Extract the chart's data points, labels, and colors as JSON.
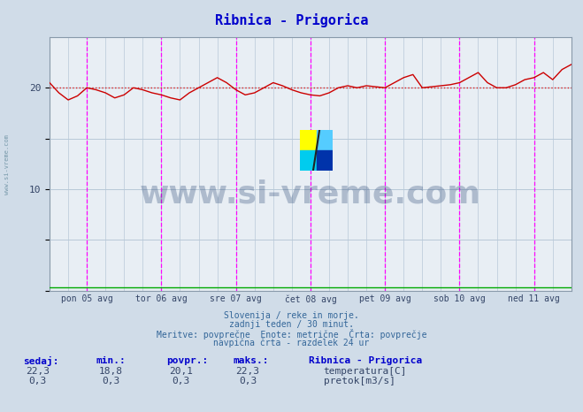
{
  "title": "Ribnica - Prigorica",
  "title_color": "#0000cc",
  "bg_color": "#d0dce8",
  "plot_bg_color": "#e8eef4",
  "grid_color": "#b8c8d8",
  "ylim": [
    0,
    25
  ],
  "yticks": [
    0,
    5,
    10,
    15,
    20
  ],
  "xlim": [
    0,
    336
  ],
  "day_labels": [
    "pon 05 avg",
    "tor 06 avg",
    "sre 07 avg",
    "čet 08 avg",
    "pet 09 avg",
    "sob 10 avg",
    "ned 11 avg"
  ],
  "day_positions": [
    24,
    72,
    120,
    168,
    216,
    264,
    312
  ],
  "vline_positions": [
    24,
    72,
    120,
    168,
    216,
    264,
    312
  ],
  "hline_y": 20,
  "hline_color": "#dd2222",
  "temp_color": "#cc0000",
  "pretok_color": "#00aa00",
  "watermark_text": "www.si-vreme.com",
  "watermark_color": "#1a3a6b",
  "watermark_alpha": 0.28,
  "sidebar_text": "www.si-vreme.com",
  "sidebar_color": "#7799aa",
  "footer_lines": [
    "Slovenija / reke in morje.",
    "zadnji teden / 30 minut.",
    "Meritve: povprečne  Enote: metrične  Črta: povprečje",
    "navpična črta - razdelek 24 ur"
  ],
  "footer_color": "#336699",
  "stats_color": "#0000cc",
  "temp_data_x": [
    0,
    6,
    12,
    18,
    24,
    30,
    36,
    42,
    48,
    54,
    60,
    66,
    72,
    78,
    84,
    90,
    96,
    102,
    108,
    114,
    120,
    126,
    132,
    138,
    144,
    150,
    156,
    162,
    168,
    174,
    180,
    186,
    192,
    198,
    204,
    210,
    216,
    222,
    228,
    234,
    240,
    246,
    252,
    258,
    264,
    270,
    276,
    282,
    288,
    294,
    300,
    306,
    312,
    318,
    324,
    330,
    336
  ],
  "temp_data_y": [
    20.5,
    19.5,
    18.8,
    19.2,
    20.0,
    19.8,
    19.5,
    19.0,
    19.3,
    20.0,
    19.8,
    19.5,
    19.3,
    19.0,
    18.8,
    19.5,
    20.0,
    20.5,
    21.0,
    20.5,
    19.8,
    19.3,
    19.5,
    20.0,
    20.5,
    20.2,
    19.8,
    19.5,
    19.3,
    19.2,
    19.5,
    20.0,
    20.2,
    20.0,
    20.2,
    20.1,
    20.0,
    20.5,
    21.0,
    21.3,
    20.0,
    20.1,
    20.2,
    20.3,
    20.5,
    21.0,
    21.5,
    20.5,
    20.0,
    20.0,
    20.3,
    20.8,
    21.0,
    21.5,
    20.8,
    21.8,
    22.3
  ],
  "pretok_data_x": [
    0,
    6,
    12,
    18,
    24,
    30,
    36,
    42,
    48,
    54,
    60,
    66,
    72,
    78,
    84,
    90,
    96,
    102,
    108,
    114,
    120,
    126,
    132,
    138,
    144,
    150,
    156,
    162,
    168,
    174,
    180,
    186,
    192,
    198,
    204,
    210,
    216,
    222,
    228,
    234,
    240,
    246,
    252,
    258,
    264,
    270,
    276,
    282,
    288,
    294,
    300,
    306,
    312,
    318,
    324,
    330,
    336
  ],
  "pretok_data_y": [
    0.3,
    0.3,
    0.3,
    0.3,
    0.3,
    0.3,
    0.3,
    0.3,
    0.3,
    0.3,
    0.3,
    0.3,
    0.3,
    0.3,
    0.3,
    0.3,
    0.3,
    0.3,
    0.3,
    0.3,
    0.3,
    0.3,
    0.3,
    0.3,
    0.3,
    0.3,
    0.3,
    0.3,
    0.3,
    0.3,
    0.3,
    0.3,
    0.3,
    0.3,
    0.3,
    0.3,
    0.3,
    0.3,
    0.3,
    0.3,
    0.3,
    0.3,
    0.3,
    0.3,
    0.3,
    0.3,
    0.3,
    0.3,
    0.3,
    0.3,
    0.3,
    0.3,
    0.3,
    0.3,
    0.3,
    0.3,
    0.3
  ]
}
